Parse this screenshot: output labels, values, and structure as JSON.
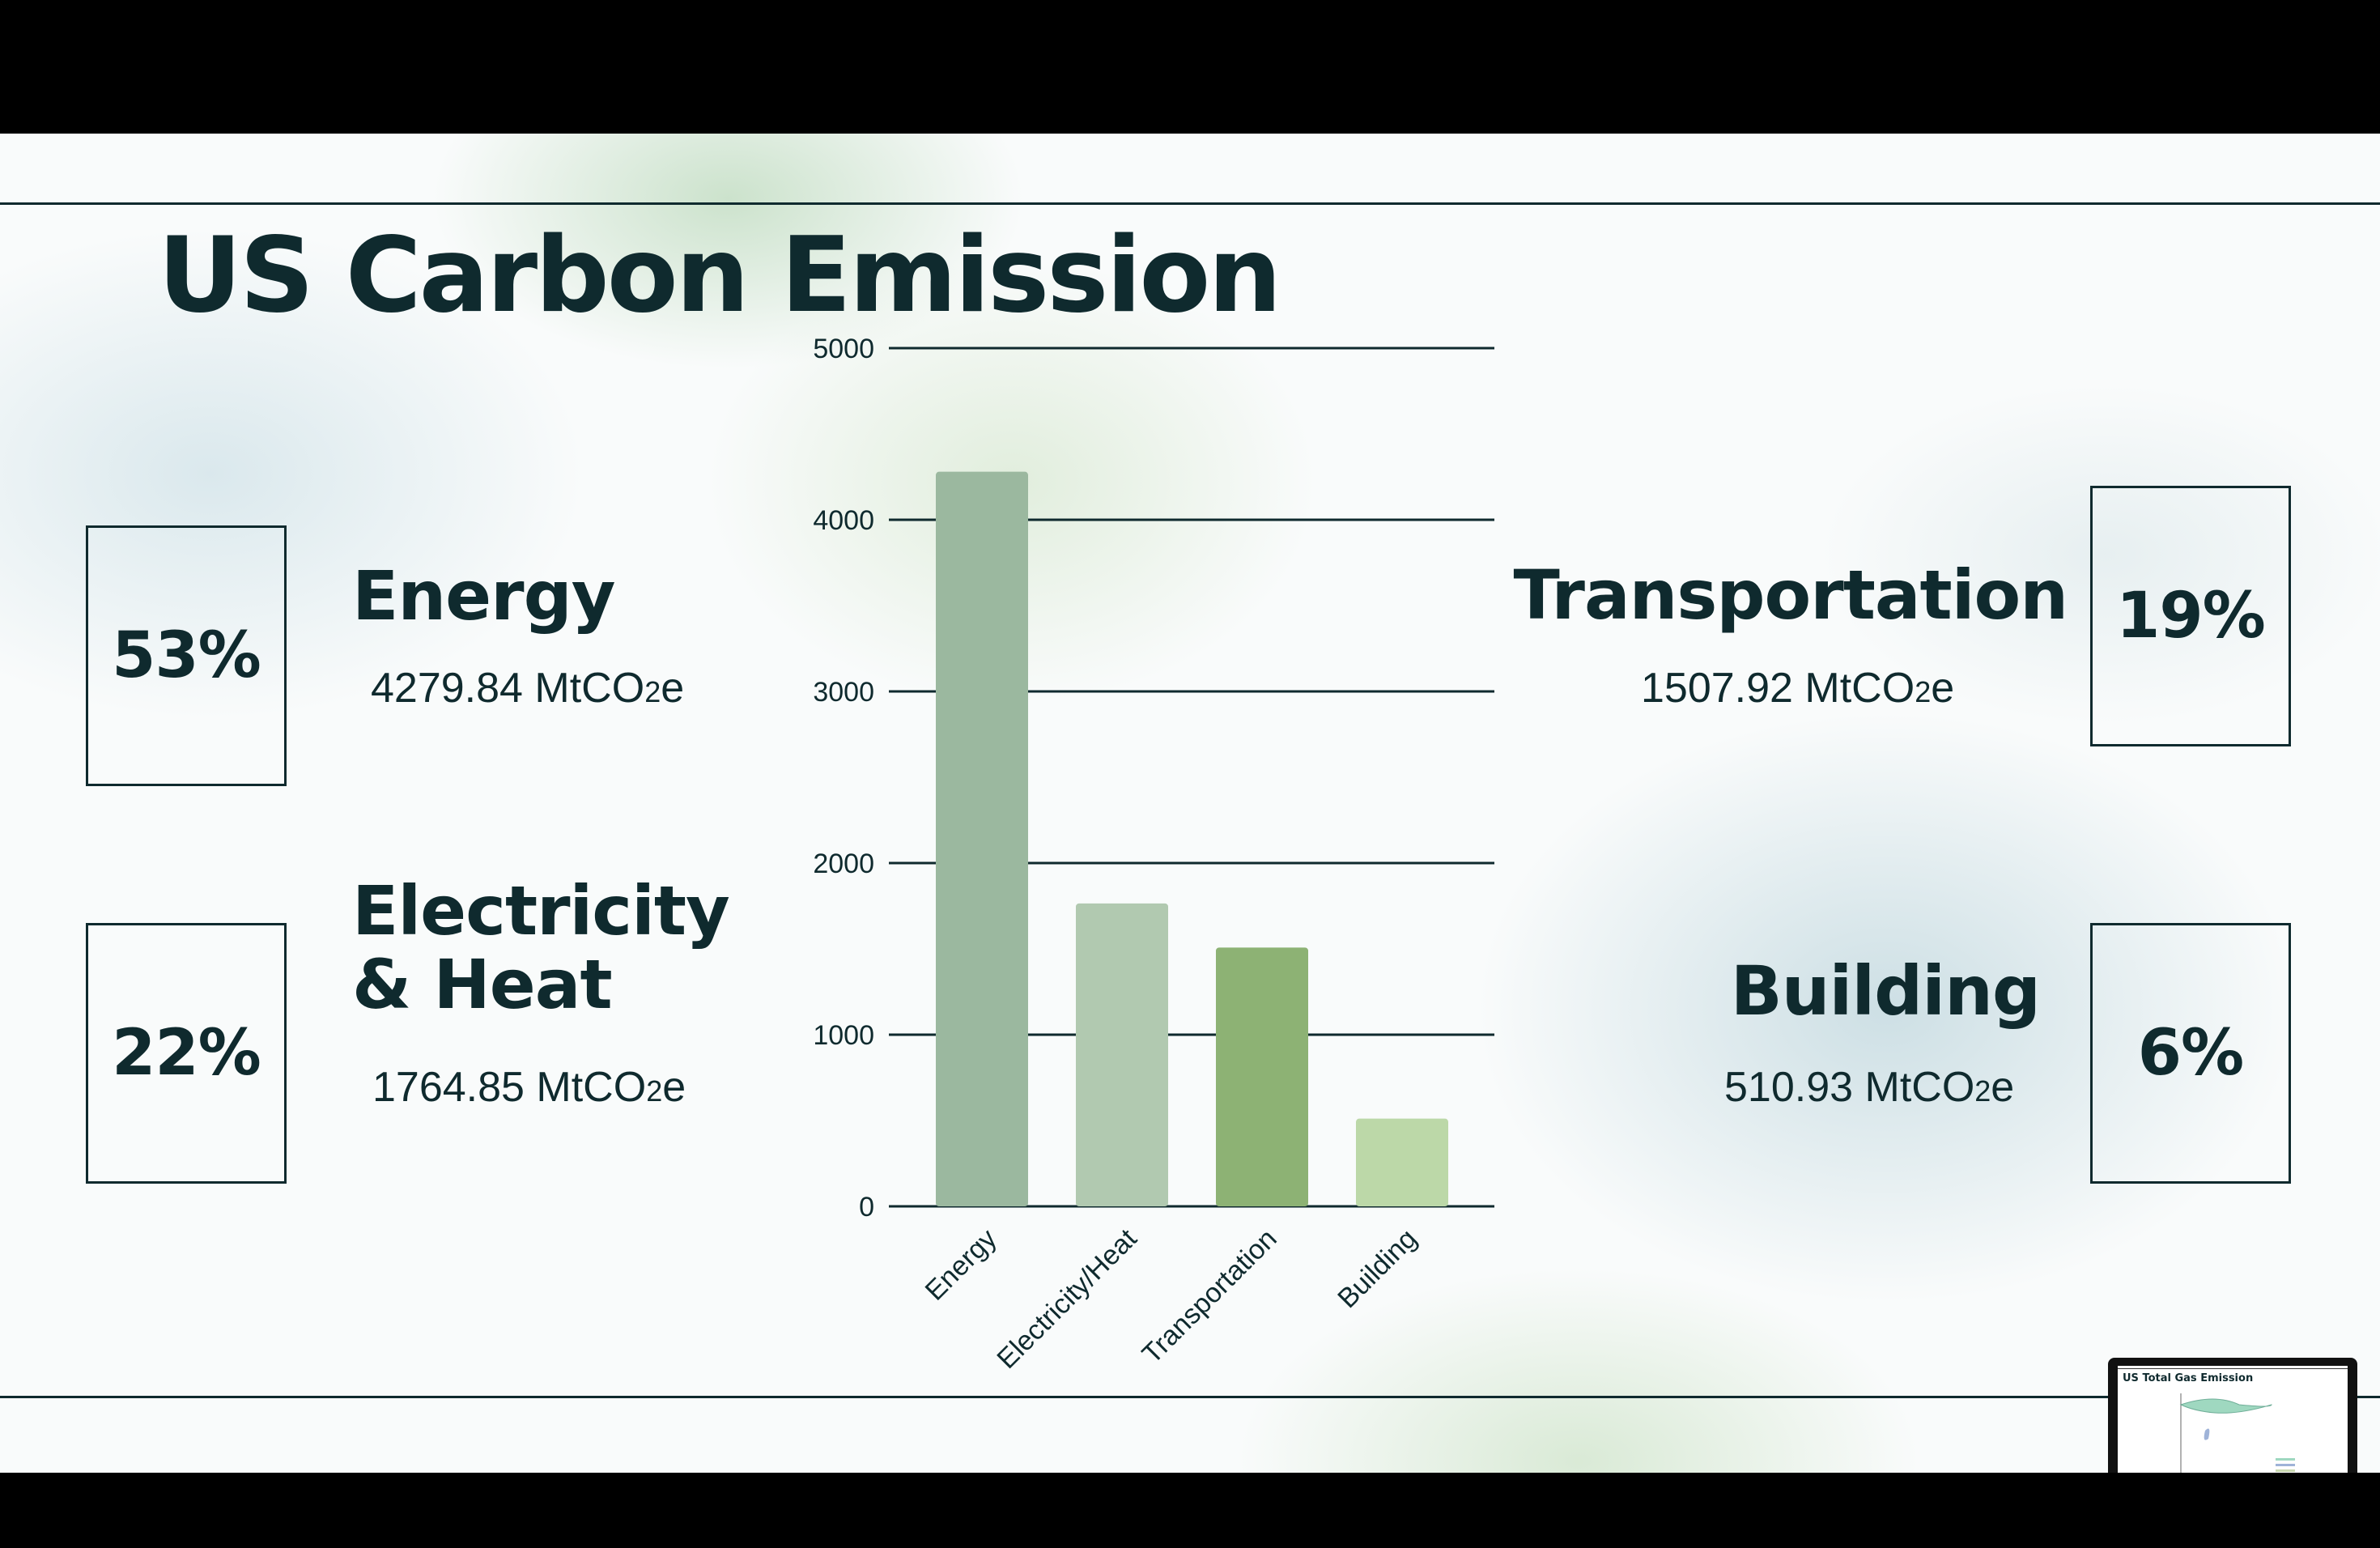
{
  "title": "US Carbon Emission",
  "unit_main": "MtCO",
  "unit_sub": "2",
  "unit_tail": "e",
  "categories": {
    "energy": {
      "name_lines": [
        "Energy"
      ],
      "percent": "53%",
      "value": "4279.84"
    },
    "electricity": {
      "name_lines": [
        "Electricity",
        "& Heat"
      ],
      "percent": "22%",
      "value": "1764.85"
    },
    "transportation": {
      "name_lines": [
        "Transportation"
      ],
      "percent": "19%",
      "value": "1507.92"
    },
    "building": {
      "name_lines": [
        "Building"
      ],
      "percent": "6%",
      "value": "510.93"
    }
  },
  "chart_data": {
    "type": "bar",
    "categories": [
      "Energy",
      "Electricity/Heat",
      "Transportation",
      "Building"
    ],
    "values": [
      4279.84,
      1764.85,
      1507.92,
      510.93
    ],
    "colors": [
      "#9bb89f",
      "#b1c9b0",
      "#8db274",
      "#bcd8a8"
    ],
    "ylim": [
      0,
      5000
    ],
    "yticks": [
      0,
      1000,
      2000,
      3000,
      4000,
      5000
    ],
    "grid": true,
    "xlabel": "",
    "ylabel": "",
    "xtick_rotation": -45
  },
  "thumbnail": {
    "title": "US Total Gas Emission"
  }
}
